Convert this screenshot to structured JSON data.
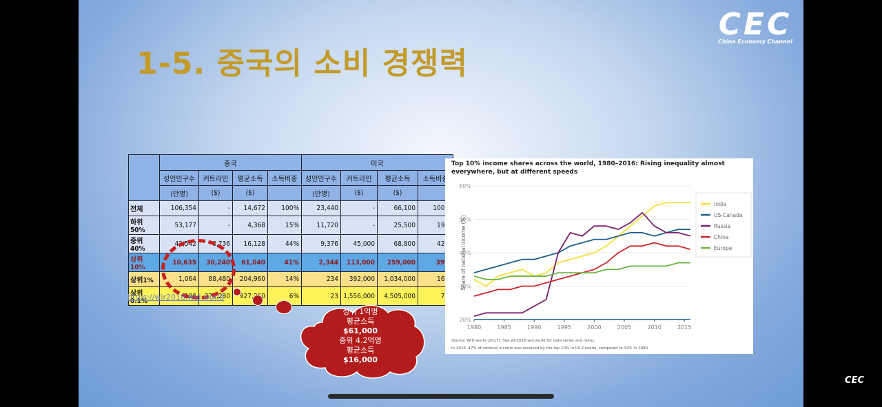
{
  "slide": {
    "title": "1-5. 중국의 소비 경쟁력",
    "logo_mark": "CEC",
    "logo_sub": "China Economy Channel",
    "link": "https://wir2018.wid.world",
    "bottom_logo": "CEC"
  },
  "table": {
    "groups": [
      "중국",
      "미국"
    ],
    "headers_line1": [
      "성인인구수",
      "커트라인",
      "평균소득",
      "소득비중",
      "성인인구수",
      "커트라인",
      "평균소득",
      "소득비중"
    ],
    "headers_line2": [
      "(만명)",
      "($)",
      "($)",
      "",
      "(만명)",
      "($)",
      "($)",
      ""
    ],
    "rows": [
      {
        "label": "전체",
        "cells": [
          "106,354",
          "-",
          "14,672",
          "100%",
          "23,440",
          "-",
          "66,100",
          "100%"
        ]
      },
      {
        "label": "하위50%",
        "cells": [
          "53,177",
          "-",
          "4,368",
          "15%",
          "11,720",
          "-",
          "25,500",
          "19%"
        ]
      },
      {
        "label": "중위40%",
        "cells": [
          "42,542",
          "8,736",
          "16,128",
          "44%",
          "9,376",
          "45,000",
          "68,800",
          "42%"
        ]
      },
      {
        "label": "상위10%",
        "cells": [
          "10,635",
          "30,240",
          "61,040",
          "41%",
          "2,344",
          "113,000",
          "259,000",
          "39%"
        ]
      },
      {
        "label": "상위1%",
        "cells": [
          "1,064",
          "88,480",
          "204,960",
          "14%",
          "234",
          "392,000",
          "1,034,000",
          "16%"
        ]
      },
      {
        "label": "상위0.1%",
        "cells": [
          "106",
          "273,280",
          "927,360",
          "6%",
          "23",
          "1,556,000",
          "4,505,000",
          "7%"
        ]
      }
    ]
  },
  "callout": {
    "lines": [
      "상위 1억명",
      "평균소득",
      "$61,000",
      "중위 4.2억명",
      "평균소득",
      "$16,000"
    ]
  },
  "chart_data": {
    "type": "line",
    "title": "Top 10% income shares across the world, 1980–2016: Rising inequality almost everywhere, but at different speeds",
    "ylabel": "Share of national income (%)",
    "xlabel": "",
    "ylim": [
      20,
      60
    ],
    "yticks": [
      "20%",
      "30%",
      "40%",
      "50%",
      "60%"
    ],
    "xticks": [
      "1980",
      "1985",
      "1990",
      "1995",
      "2000",
      "2005",
      "2010",
      "2015"
    ],
    "xlim": [
      1980,
      2016
    ],
    "legend_position": "top-right",
    "grid": true,
    "x": [
      1980,
      1982,
      1984,
      1986,
      1988,
      1990,
      1992,
      1994,
      1996,
      1998,
      2000,
      2002,
      2004,
      2006,
      2008,
      2010,
      2012,
      2014,
      2016
    ],
    "series": [
      {
        "name": "India",
        "color": "#f2e03a",
        "values": [
          32,
          30,
          33,
          34,
          35,
          33,
          34,
          37,
          38,
          39,
          40,
          42,
          45,
          48,
          51,
          54,
          55,
          55,
          55
        ]
      },
      {
        "name": "US-Canada",
        "color": "#1f5f8c",
        "values": [
          34,
          35,
          36,
          37,
          38,
          38,
          39,
          40,
          42,
          43,
          44,
          44,
          45,
          46,
          46,
          45,
          46,
          47,
          47
        ]
      },
      {
        "name": "Russia",
        "color": "#7b1f6e",
        "values": [
          21,
          22,
          22,
          22,
          22,
          24,
          26,
          40,
          46,
          45,
          48,
          48,
          47,
          49,
          52,
          48,
          46,
          46,
          45
        ]
      },
      {
        "name": "China",
        "color": "#c8282b",
        "values": [
          27,
          28,
          29,
          29,
          30,
          30,
          31,
          32,
          33,
          34,
          35,
          37,
          40,
          42,
          42,
          43,
          42,
          42,
          41
        ]
      },
      {
        "name": "Europe",
        "color": "#6db33f",
        "values": [
          33,
          32,
          32,
          33,
          33,
          33,
          33,
          34,
          34,
          34,
          34,
          35,
          35,
          36,
          36,
          36,
          36,
          37,
          37
        ]
      }
    ],
    "source_line1": "Source: WID.world (2017). See wir2018.wid.world for data series and notes.",
    "source_line2": "In 2016, 47% of national income was received by the top 10% in US-Canada, compared to 34% in 1980."
  }
}
